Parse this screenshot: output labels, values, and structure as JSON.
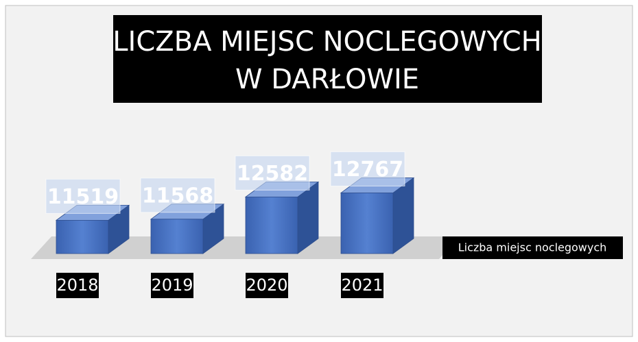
{
  "chart_data": {
    "type": "bar3d",
    "title": [
      "LICZBA MIEJSC NOCLEGOWYCH",
      "W DARŁOWIE"
    ],
    "categories": [
      "2018",
      "2019",
      "2020",
      "2021"
    ],
    "series": [
      {
        "name": "Liczba miejsc noclegowych",
        "color": "#4472c4",
        "values": [
          11519,
          11568,
          12582,
          12767
        ]
      }
    ],
    "ylim": [
      10000,
      15000
    ]
  }
}
